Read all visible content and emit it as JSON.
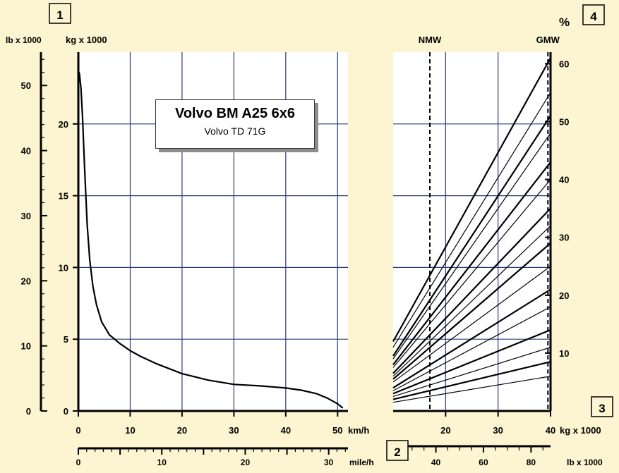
{
  "title_box": {
    "main": "Volvo BM A25 6x6",
    "sub": "Volvo TD 71G"
  },
  "markers": [
    "1",
    "2",
    "3",
    "4"
  ],
  "chart_data": [
    {
      "type": "line",
      "name": "rimpull",
      "title": "Volvo BM A25 6x6",
      "subtitle": "Volvo TD 71G",
      "xlabel": "km/h",
      "x2label": "mile/h",
      "ylabel": "kg x 1000",
      "y2label": "lb x 1000",
      "xlim": [
        0,
        52
      ],
      "ylim": [
        0,
        25
      ],
      "x_ticks": [
        0,
        10,
        20,
        30,
        40,
        50
      ],
      "x_tick_labels": [
        "0",
        "10",
        "20",
        "30",
        "40",
        "50"
      ],
      "y_ticks": [
        0,
        5,
        10,
        15,
        20
      ],
      "y_tick_labels": [
        "0",
        "5",
        "10",
        "15",
        "20"
      ],
      "mph_ticks": [
        0,
        10,
        20,
        30
      ],
      "mph_tick_labels": [
        "0",
        "10",
        "20",
        "30"
      ],
      "lb_ticks": [
        0,
        10,
        20,
        30,
        40,
        50
      ],
      "lb_tick_labels": [
        "0",
        "10",
        "20",
        "30",
        "40",
        "50"
      ],
      "grid": true,
      "series": [
        {
          "x": [
            0,
            0.2,
            0.5,
            0.8,
            1.2,
            1.7,
            2.2,
            2.8,
            3.5,
            4.5,
            6,
            8,
            10,
            12,
            15,
            20,
            25,
            30,
            35,
            40,
            43,
            46,
            48,
            50,
            51
          ],
          "y": [
            23.7,
            23.5,
            22.5,
            20.5,
            17,
            13,
            10.5,
            8.7,
            7.4,
            6.2,
            5.3,
            4.7,
            4.2,
            3.8,
            3.3,
            2.6,
            2.15,
            1.85,
            1.75,
            1.6,
            1.45,
            1.2,
            0.9,
            0.5,
            0.2
          ]
        }
      ]
    },
    {
      "type": "line",
      "name": "grade",
      "xlabel": "kg x 1000",
      "x2label": "lb x 1000",
      "ylabel": "%",
      "xlim": [
        10,
        40
      ],
      "ylim": [
        0,
        62
      ],
      "x_ticks": [
        20,
        30,
        40
      ],
      "x_tick_labels": [
        "20",
        "30",
        "40"
      ],
      "lb_ticks": [
        40,
        60,
        80
      ],
      "lb_tick_labels": [
        "40",
        "60",
        "80"
      ],
      "y_ticks": [
        10,
        20,
        30,
        40,
        50,
        60
      ],
      "y_tick_labels": [
        "10",
        "20",
        "30",
        "40",
        "50",
        "60"
      ],
      "vlines": [
        {
          "label": "NMW",
          "x": 17
        },
        {
          "label": "GMW",
          "x": 39.5
        }
      ],
      "grid": true,
      "series": [
        {
          "x": [
            10,
            40
          ],
          "y": [
            1.5,
            6
          ]
        },
        {
          "x": [
            10,
            40
          ],
          "y": [
            2,
            8.5
          ]
        },
        {
          "x": [
            10,
            40
          ],
          "y": [
            2.5,
            11
          ]
        },
        {
          "x": [
            10,
            40
          ],
          "y": [
            3,
            14
          ]
        },
        {
          "x": [
            10,
            40
          ],
          "y": [
            3.5,
            18
          ]
        },
        {
          "x": [
            10,
            40
          ],
          "y": [
            4,
            21
          ]
        },
        {
          "x": [
            10,
            40
          ],
          "y": [
            5,
            25
          ]
        },
        {
          "x": [
            10,
            40
          ],
          "y": [
            5.5,
            29
          ]
        },
        {
          "x": [
            10,
            40
          ],
          "y": [
            6,
            32
          ]
        },
        {
          "x": [
            10,
            40
          ],
          "y": [
            6.5,
            35
          ]
        },
        {
          "x": [
            10,
            40
          ],
          "y": [
            7.5,
            40
          ]
        },
        {
          "x": [
            10,
            40
          ],
          "y": [
            8,
            43
          ]
        },
        {
          "x": [
            10,
            40
          ],
          "y": [
            9,
            48
          ]
        },
        {
          "x": [
            10,
            40
          ],
          "y": [
            9.5,
            51
          ]
        },
        {
          "x": [
            10,
            40
          ],
          "y": [
            11,
            55
          ]
        },
        {
          "x": [
            10,
            40
          ],
          "y": [
            12,
            61
          ]
        }
      ]
    }
  ]
}
